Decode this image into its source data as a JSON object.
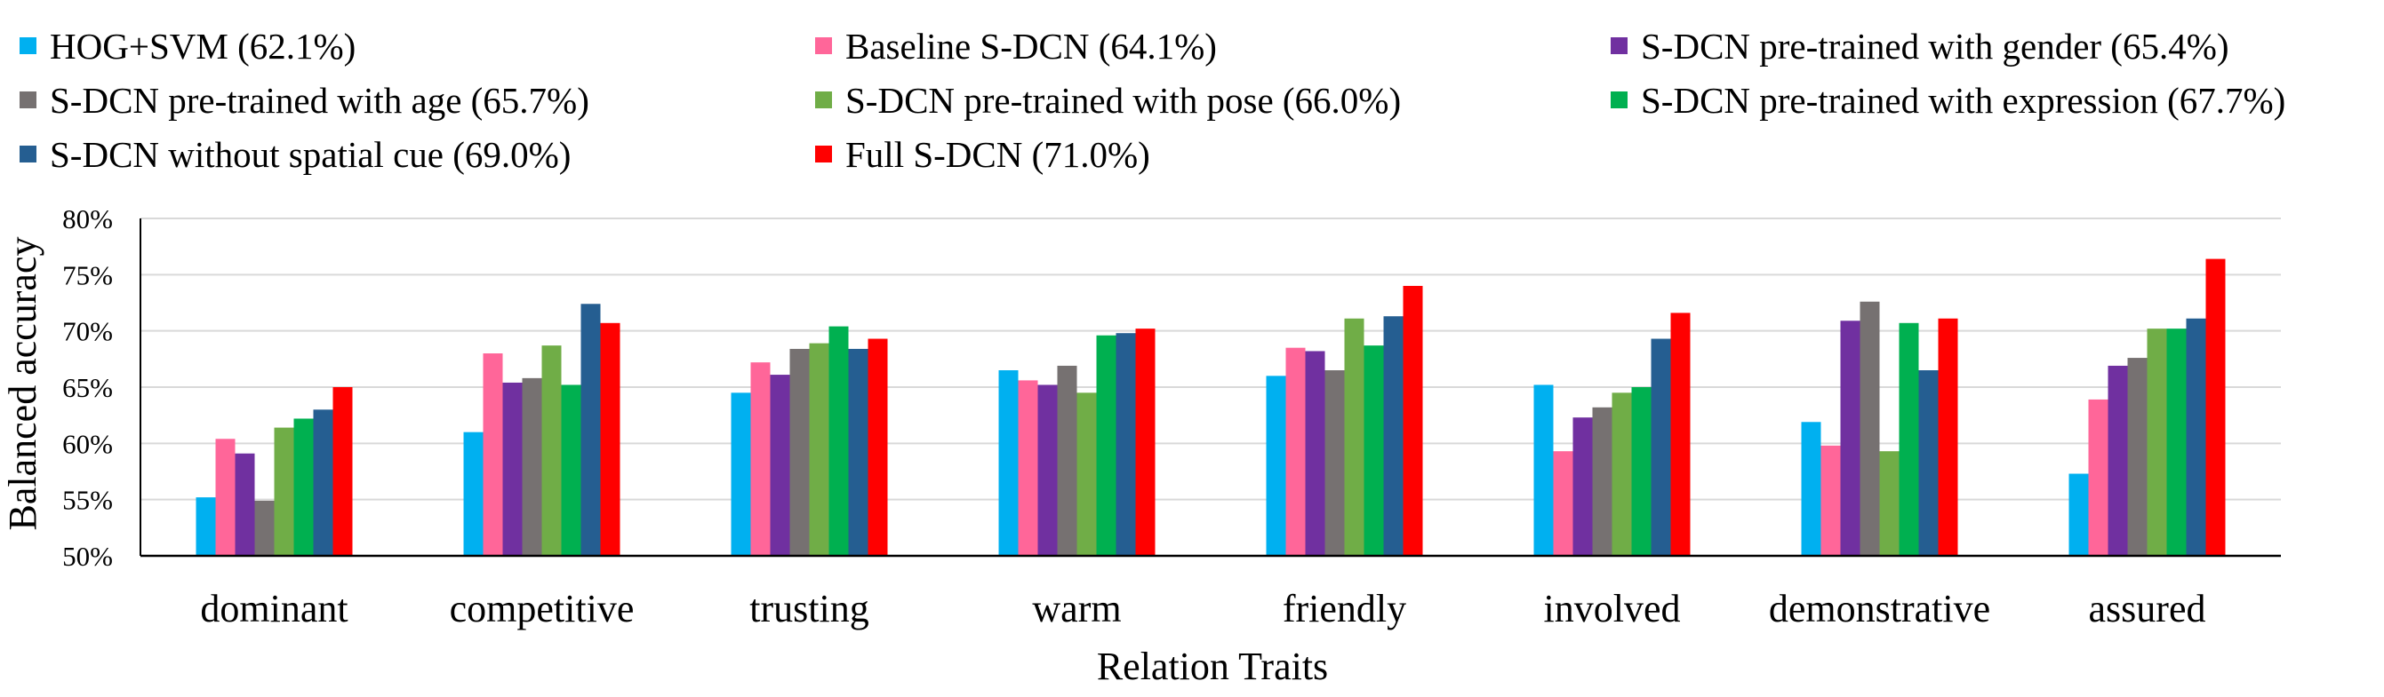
{
  "chart_data": {
    "type": "bar",
    "title": "",
    "xlabel": "Relation Traits",
    "ylabel": "Balanced accuracy",
    "ylim": [
      50,
      80
    ],
    "yticks": [
      50,
      55,
      60,
      65,
      70,
      75,
      80
    ],
    "ytick_labels": [
      "50%",
      "55%",
      "60%",
      "65%",
      "70%",
      "75%",
      "80%"
    ],
    "grid": true,
    "legend_position": "top",
    "categories": [
      "dominant",
      "competitive",
      "trusting",
      "warm",
      "friendly",
      "involved",
      "demonstrative",
      "assured"
    ],
    "series": [
      {
        "name": "HOG+SVM (62.1%)",
        "color": "#00b0f0",
        "values": [
          55.2,
          61.0,
          64.5,
          66.5,
          66.0,
          65.2,
          61.9,
          57.3
        ]
      },
      {
        "name": "Baseline S-DCN (64.1%)",
        "color": "#ff6699",
        "values": [
          60.4,
          68.0,
          67.2,
          65.6,
          68.5,
          59.3,
          59.8,
          63.9
        ]
      },
      {
        "name": "S-DCN pre-trained with gender (65.4%)",
        "color": "#7030a0",
        "values": [
          59.1,
          65.4,
          66.1,
          65.2,
          68.2,
          62.3,
          70.9,
          66.9
        ]
      },
      {
        "name": "S-DCN pre-trained with age (65.7%)",
        "color": "#767171",
        "values": [
          54.9,
          65.8,
          68.4,
          66.9,
          66.5,
          63.2,
          72.6,
          67.6
        ]
      },
      {
        "name": "S-DCN pre-trained with pose (66.0%)",
        "color": "#70ad47",
        "values": [
          61.4,
          68.7,
          68.9,
          64.5,
          71.1,
          64.5,
          59.3,
          70.2
        ]
      },
      {
        "name": "S-DCN pre-trained with expression (67.7%)",
        "color": "#00b050",
        "values": [
          62.2,
          65.2,
          70.4,
          69.6,
          68.7,
          65.0,
          70.7,
          70.2
        ]
      },
      {
        "name": "S-DCN without spatial cue (69.0%)",
        "color": "#255e91",
        "values": [
          63.0,
          72.4,
          68.4,
          69.8,
          71.3,
          69.3,
          66.5,
          71.1
        ]
      },
      {
        "name": "Full S-DCN (71.0%)",
        "color": "#ff0000",
        "values": [
          65.0,
          70.7,
          69.3,
          70.2,
          74.0,
          71.6,
          71.1,
          76.4
        ]
      }
    ]
  }
}
